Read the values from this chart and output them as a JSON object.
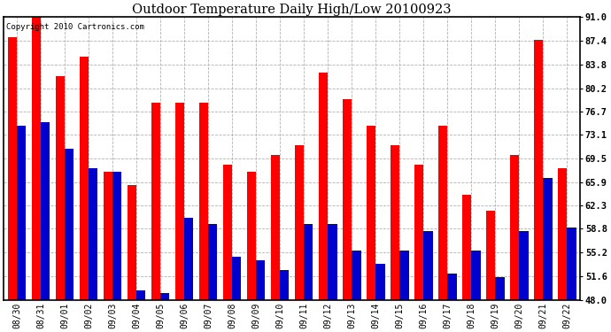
{
  "title": "Outdoor Temperature Daily High/Low 20100923",
  "copyright": "Copyright 2010 Cartronics.com",
  "dates": [
    "08/30",
    "08/31",
    "09/01",
    "09/02",
    "09/03",
    "09/04",
    "09/05",
    "09/06",
    "09/07",
    "09/08",
    "09/09",
    "09/10",
    "09/11",
    "09/12",
    "09/13",
    "09/14",
    "09/15",
    "09/16",
    "09/17",
    "09/18",
    "09/19",
    "09/20",
    "09/21",
    "09/22"
  ],
  "highs": [
    88.0,
    91.0,
    82.0,
    85.0,
    67.5,
    65.5,
    78.0,
    78.0,
    78.0,
    68.5,
    67.5,
    70.0,
    71.5,
    82.5,
    78.5,
    74.5,
    71.5,
    68.5,
    74.5,
    64.0,
    61.5,
    70.0,
    87.5,
    68.0
  ],
  "lows": [
    74.5,
    75.0,
    71.0,
    68.0,
    67.5,
    49.5,
    49.0,
    60.5,
    59.5,
    54.5,
    54.0,
    52.5,
    59.5,
    59.5,
    55.5,
    53.5,
    55.5,
    58.5,
    52.0,
    55.5,
    51.5,
    58.5,
    66.5,
    59.0
  ],
  "high_color": "#ff0000",
  "low_color": "#0000cc",
  "bg_color": "#ffffff",
  "grid_color": "#aaaaaa",
  "ymin": 48.0,
  "ymax": 91.0,
  "yticks": [
    48.0,
    51.6,
    55.2,
    58.8,
    62.3,
    65.9,
    69.5,
    73.1,
    76.7,
    80.2,
    83.8,
    87.4,
    91.0
  ]
}
